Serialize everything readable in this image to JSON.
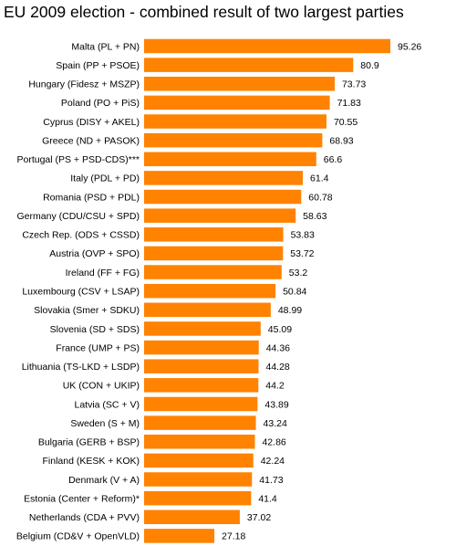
{
  "chart_data": {
    "type": "bar",
    "orientation": "horizontal",
    "title": "EU 2009 election - combined result of two largest parties",
    "categories": [
      "Malta (PL + PN)",
      "Spain (PP + PSOE)",
      "Hungary (Fidesz + MSZP)",
      "Poland (PO + PiS)",
      "Cyprus (DISY + AKEL)",
      "Greece (ND + PASOK)",
      "Portugal (PS + PSD-CDS)***",
      "Italy (PDL + PD)",
      "Romania (PSD + PDL)",
      "Germany (CDU/CSU + SPD)",
      "Czech Rep. (ODS + CSSD)",
      "Austria (OVP + SPO)",
      "Ireland (FF + FG)",
      "Luxembourg (CSV + LSAP)",
      "Slovakia (Smer + SDKU)",
      "Slovenia (SD + SDS)",
      "France (UMP + PS)",
      "Lithuania (TS-LKD + LSDP)",
      "UK (CON + UKIP)",
      "Latvia (SC + V)",
      "Sweden (S + M)",
      "Bulgaria (GERB + BSP)",
      "Finland (KESK + KOK)",
      "Denmark (V + A)",
      "Estonia (Center + Reform)*",
      "Netherlands (CDA + PVV)",
      "Belgium (CD&V + OpenVLD)"
    ],
    "values": [
      95.26,
      80.9,
      73.73,
      71.83,
      70.55,
      68.93,
      66.6,
      61.4,
      60.78,
      58.63,
      53.83,
      53.72,
      53.2,
      50.84,
      48.99,
      45.09,
      44.36,
      44.28,
      44.2,
      43.89,
      43.24,
      42.86,
      42.24,
      41.73,
      41.4,
      37.02,
      27.18
    ],
    "value_labels": [
      "95.26",
      "80.9",
      "73.73",
      "71.83",
      "70.55",
      "68.93",
      "66.6",
      "61.4",
      "60.78",
      "58.63",
      "53.83",
      "53.72",
      "53.2",
      "50.84",
      "48.99",
      "45.09",
      "44.36",
      "44.28",
      "44.2",
      "43.89",
      "43.24",
      "42.86",
      "42.24",
      "41.73",
      "41.4",
      "37.02",
      "27.18"
    ],
    "xlim": [
      0,
      95.26
    ],
    "grid": false,
    "bar_color": "#ff8200"
  }
}
